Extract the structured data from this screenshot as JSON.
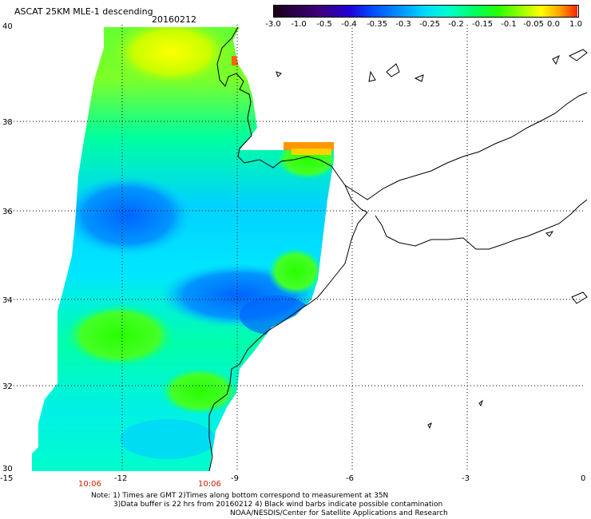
{
  "header": {
    "title": "ASCAT 25KM MLE-1 descending",
    "date": "20160212"
  },
  "colorbar": {
    "labels": [
      "-3.0",
      "-1.0",
      "-0.5",
      "-0.4",
      "-0.35",
      "-0.3",
      "-0.25",
      "-0.2",
      "-0.15",
      "-0.1",
      "-0.05",
      "0.0",
      "1.0"
    ],
    "colors": [
      "#1a001a",
      "#3d007a",
      "#1f00d6",
      "#0050ff",
      "#0096ff",
      "#00dcff",
      "#00ffc8",
      "#00ff64",
      "#28ff00",
      "#a0ff00",
      "#ffff00",
      "#ffa500",
      "#ff2200"
    ]
  },
  "map": {
    "lon_range": [
      -15,
      0
    ],
    "lat_range": [
      30,
      40
    ],
    "lon_ticks": [
      "-15",
      "-12",
      "-9",
      "-6",
      "-3",
      "0"
    ],
    "lat_ticks": [
      "40",
      "38",
      "36",
      "34",
      "32",
      "30"
    ],
    "time_labels": [
      "10:06",
      "10:06"
    ]
  },
  "notes": {
    "line1": "Note: 1) Times are GMT 2)Times along bottom correspond to measurement at 35N",
    "line2": "3)Data buffer is 22 hrs from 20160212 4) Black wind barbs indicate possible contamination",
    "line3": "NOAA/NESDIS/Center for Satellite Applications and Research"
  }
}
